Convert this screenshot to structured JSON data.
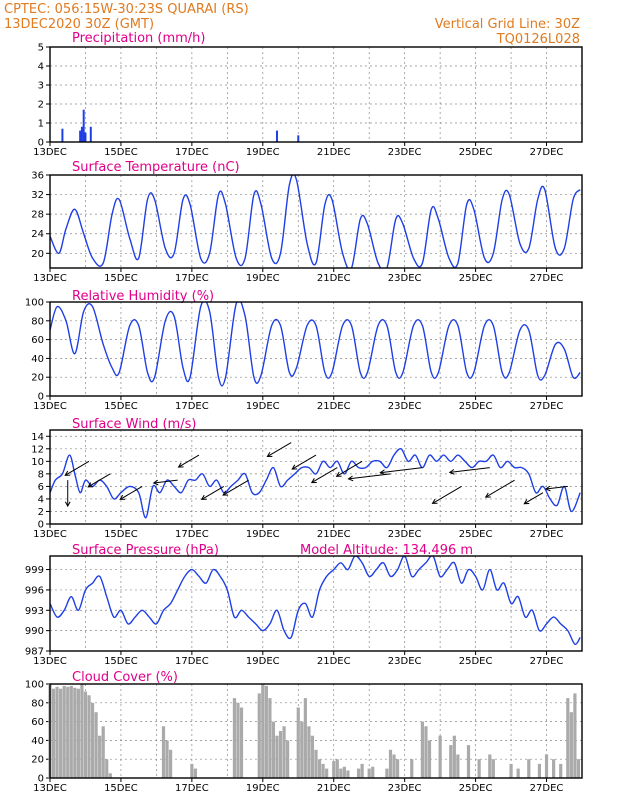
{
  "header": {
    "line1": "CPTEC:   056:15W-30:23S  QUARAI (RS)",
    "line2": "13DEC2020 30Z (GMT)",
    "right1": "Vertical Grid Line: 30Z",
    "right2": "TQ0126L028"
  },
  "colors": {
    "header": "#e07b1f",
    "title": "#e0008a",
    "line": "#1f3fe6",
    "bar_precip": "#1f3fe6",
    "bar_cloud": "#aaaaaa"
  },
  "x_labels": [
    "13DEC",
    "15DEC",
    "17DEC",
    "19DEC",
    "21DEC",
    "23DEC",
    "25DEC",
    "27DEC"
  ],
  "chart_data": [
    {
      "type": "bar",
      "title": "Precipitation  (mm/h)",
      "ylim": [
        0,
        5
      ],
      "yticks": [
        0,
        1,
        2,
        3,
        4,
        5
      ],
      "x_day_range": [
        13,
        28
      ],
      "x": [
        13.35,
        13.85,
        13.9,
        13.95,
        14.0,
        14.15,
        19.4,
        20.0
      ],
      "values": [
        0.7,
        0.6,
        0.8,
        1.7,
        0.5,
        0.8,
        0.6,
        0.35
      ]
    },
    {
      "type": "line",
      "title": "Surface Temperature (nC)",
      "ylim": [
        17,
        36
      ],
      "yticks": [
        20,
        24,
        28,
        32,
        36
      ],
      "x_day_range": [
        13,
        28
      ],
      "x": [
        13.0,
        13.25,
        13.45,
        13.7,
        13.95,
        14.2,
        14.5,
        14.75,
        14.95,
        15.25,
        15.5,
        15.75,
        15.95,
        16.25,
        16.5,
        16.75,
        16.95,
        17.25,
        17.5,
        17.75,
        17.95,
        18.25,
        18.5,
        18.75,
        18.95,
        19.25,
        19.5,
        19.75,
        19.95,
        20.25,
        20.5,
        20.75,
        20.95,
        21.25,
        21.5,
        21.75,
        21.95,
        22.25,
        22.5,
        22.75,
        22.95,
        23.25,
        23.5,
        23.75,
        23.95,
        24.25,
        24.5,
        24.75,
        24.95,
        25.25,
        25.5,
        25.75,
        25.95,
        26.25,
        26.5,
        26.75,
        26.95,
        27.25,
        27.5,
        27.75,
        27.95
      ],
      "values": [
        23.5,
        20,
        25,
        29,
        24,
        19,
        18,
        28,
        31,
        23,
        19,
        31,
        31,
        21,
        20,
        31,
        30,
        19,
        20,
        32,
        30,
        19,
        19,
        32,
        30,
        19,
        20,
        34,
        35,
        22,
        18,
        30,
        31,
        20,
        17,
        27,
        26,
        18,
        17,
        27,
        26,
        19,
        18,
        29,
        27,
        19,
        18,
        30,
        29,
        19,
        20,
        31,
        32,
        22,
        21,
        31,
        33,
        21,
        21,
        31,
        33
      ]
    },
    {
      "type": "line",
      "title": "Relative Humidity  (%)",
      "ylim": [
        0,
        100
      ],
      "yticks": [
        0,
        20,
        40,
        60,
        80,
        100
      ],
      "x_day_range": [
        13,
        28
      ],
      "x": [
        13.0,
        13.2,
        13.45,
        13.7,
        13.95,
        14.2,
        14.5,
        14.75,
        14.95,
        15.25,
        15.5,
        15.75,
        15.95,
        16.25,
        16.5,
        16.75,
        16.95,
        17.25,
        17.5,
        17.75,
        17.95,
        18.25,
        18.5,
        18.75,
        18.95,
        19.25,
        19.5,
        19.75,
        19.95,
        20.25,
        20.5,
        20.75,
        20.95,
        21.25,
        21.5,
        21.75,
        21.95,
        22.25,
        22.5,
        22.75,
        22.95,
        23.25,
        23.5,
        23.75,
        23.95,
        24.25,
        24.5,
        24.75,
        24.95,
        25.25,
        25.5,
        25.75,
        25.95,
        26.25,
        26.5,
        26.75,
        26.95,
        27.25,
        27.5,
        27.75,
        27.95
      ],
      "values": [
        70,
        95,
        80,
        45,
        90,
        95,
        55,
        30,
        25,
        75,
        75,
        25,
        20,
        80,
        85,
        30,
        20,
        95,
        90,
        20,
        20,
        98,
        85,
        20,
        22,
        75,
        75,
        25,
        30,
        75,
        75,
        25,
        25,
        75,
        75,
        25,
        25,
        75,
        75,
        25,
        25,
        75,
        75,
        25,
        25,
        75,
        75,
        25,
        25,
        75,
        75,
        25,
        25,
        70,
        70,
        22,
        22,
        55,
        50,
        20,
        25
      ]
    },
    {
      "type": "line",
      "title": "Surface Wind  (m/s)",
      "ylim": [
        0,
        15
      ],
      "yticks": [
        0,
        2,
        4,
        6,
        8,
        10,
        12,
        14
      ],
      "x_day_range": [
        13,
        28
      ],
      "x": [
        13.0,
        13.15,
        13.35,
        13.55,
        13.7,
        13.85,
        14.0,
        14.2,
        14.4,
        14.6,
        14.8,
        15.0,
        15.25,
        15.5,
        15.7,
        15.9,
        16.1,
        16.3,
        16.5,
        16.7,
        16.9,
        17.1,
        17.3,
        17.5,
        17.7,
        17.9,
        18.1,
        18.3,
        18.5,
        18.7,
        18.9,
        19.1,
        19.3,
        19.5,
        19.7,
        19.9,
        20.1,
        20.3,
        20.5,
        20.7,
        20.9,
        21.1,
        21.3,
        21.5,
        21.7,
        21.9,
        22.1,
        22.3,
        22.5,
        22.7,
        22.9,
        23.1,
        23.3,
        23.5,
        23.7,
        23.9,
        24.1,
        24.3,
        24.5,
        24.7,
        24.9,
        25.1,
        25.3,
        25.5,
        25.7,
        25.9,
        26.1,
        26.3,
        26.5,
        26.7,
        26.9,
        27.1,
        27.3,
        27.5,
        27.7,
        27.95
      ],
      "values": [
        5,
        7,
        8,
        11,
        8,
        5,
        7,
        6,
        7,
        6,
        4,
        5,
        6,
        5,
        1,
        6,
        5,
        7,
        6,
        5,
        7,
        7,
        8,
        6,
        7,
        5,
        6,
        7,
        8,
        5,
        5,
        7,
        9,
        6,
        7,
        8,
        9,
        9,
        8,
        10,
        9,
        10,
        8,
        10,
        9,
        9,
        10,
        10,
        9,
        11,
        12,
        10,
        11,
        9,
        11,
        10,
        11,
        10,
        11,
        10,
        9,
        10,
        10,
        11,
        9,
        10,
        9,
        9,
        8,
        5,
        6,
        4,
        3,
        6,
        2,
        5
      ],
      "arrows": [
        {
          "x": 13.5,
          "y": 7,
          "dir": "from-n",
          "len": 26
        },
        {
          "x": 14.1,
          "y": 10,
          "dir": "from-ne",
          "len": 28
        },
        {
          "x": 14.7,
          "y": 8,
          "dir": "from-ne",
          "len": 26
        },
        {
          "x": 15.6,
          "y": 6,
          "dir": "from-ne",
          "len": 26
        },
        {
          "x": 16.6,
          "y": 7,
          "dir": "from-e",
          "len": 24
        },
        {
          "x": 17.2,
          "y": 11,
          "dir": "from-ne",
          "len": 24
        },
        {
          "x": 17.9,
          "y": 6,
          "dir": "from-ne",
          "len": 26
        },
        {
          "x": 18.6,
          "y": 7,
          "dir": "from-ne",
          "len": 30
        },
        {
          "x": 19.8,
          "y": 13,
          "dir": "from-ne",
          "len": 28
        },
        {
          "x": 20.5,
          "y": 11,
          "dir": "from-ne",
          "len": 28
        },
        {
          "x": 21.1,
          "y": 9,
          "dir": "from-ne",
          "len": 30
        },
        {
          "x": 21.8,
          "y": 10,
          "dir": "from-ne",
          "len": 30
        },
        {
          "x": 22.6,
          "y": 8,
          "dir": "from-e",
          "len": 42
        },
        {
          "x": 23.5,
          "y": 9,
          "dir": "from-e",
          "len": 42
        },
        {
          "x": 24.6,
          "y": 6,
          "dir": "from-ne",
          "len": 34
        },
        {
          "x": 25.4,
          "y": 9,
          "dir": "from-e",
          "len": 40
        },
        {
          "x": 26.1,
          "y": 7,
          "dir": "from-ne",
          "len": 34
        },
        {
          "x": 26.9,
          "y": 5,
          "dir": "from-ne",
          "len": 22
        },
        {
          "x": 27.6,
          "y": 6,
          "dir": "from-e",
          "len": 22
        }
      ]
    },
    {
      "type": "line",
      "title": "Surface Pressure  (hPa)",
      "annotation": "Model Altitude:  134.496  m",
      "ylim": [
        987,
        1001
      ],
      "yticks": [
        987,
        990,
        993,
        996,
        999
      ],
      "x_day_range": [
        13,
        28
      ],
      "x": [
        13.0,
        13.2,
        13.4,
        13.6,
        13.8,
        14.0,
        14.2,
        14.4,
        14.6,
        14.8,
        15.0,
        15.2,
        15.4,
        15.6,
        15.8,
        16.0,
        16.2,
        16.4,
        16.6,
        16.8,
        17.0,
        17.2,
        17.4,
        17.6,
        17.8,
        18.0,
        18.2,
        18.4,
        18.6,
        18.8,
        19.0,
        19.2,
        19.4,
        19.6,
        19.8,
        20.0,
        20.2,
        20.4,
        20.6,
        20.8,
        21.0,
        21.2,
        21.4,
        21.6,
        21.8,
        22.0,
        22.2,
        22.4,
        22.6,
        22.8,
        23.0,
        23.2,
        23.4,
        23.6,
        23.8,
        24.0,
        24.2,
        24.4,
        24.6,
        24.8,
        25.0,
        25.2,
        25.4,
        25.6,
        25.8,
        26.0,
        26.2,
        26.4,
        26.6,
        26.8,
        27.0,
        27.2,
        27.4,
        27.6,
        27.8,
        27.95
      ],
      "values": [
        994,
        992,
        993,
        995,
        993,
        996,
        997,
        998,
        995,
        992,
        993,
        991,
        992,
        993,
        992,
        991,
        993,
        994,
        996,
        998,
        999,
        998,
        997,
        999,
        998,
        996,
        992,
        993,
        992,
        991,
        990,
        991,
        993,
        990,
        989,
        993,
        994,
        992,
        996,
        998,
        999,
        1000,
        999,
        1001,
        1000,
        998,
        999,
        1000,
        998,
        999,
        1001,
        998,
        999,
        1000,
        1001,
        998,
        999,
        1000,
        997,
        999,
        998,
        996,
        999,
        996,
        997,
        994,
        995,
        992,
        993,
        990,
        991,
        992,
        991,
        990,
        988,
        989
      ]
    },
    {
      "type": "bar",
      "title": "Cloud Cover  (%)",
      "ylim": [
        0,
        100
      ],
      "yticks": [
        0,
        20,
        40,
        60,
        80,
        100
      ],
      "x_day_range": [
        13,
        28
      ],
      "x": [
        13.0,
        13.1,
        13.2,
        13.3,
        13.4,
        13.5,
        13.6,
        13.7,
        13.8,
        13.9,
        14.0,
        14.1,
        14.2,
        14.3,
        14.4,
        14.5,
        14.6,
        14.7,
        15.3,
        15.4,
        16.2,
        16.3,
        16.4,
        17.0,
        17.1,
        18.2,
        18.3,
        18.4,
        18.9,
        19.0,
        19.1,
        19.2,
        19.3,
        19.4,
        19.5,
        19.6,
        19.7,
        20.0,
        20.1,
        20.2,
        20.3,
        20.4,
        20.5,
        20.6,
        20.7,
        20.8,
        21.0,
        21.1,
        21.2,
        21.3,
        21.4,
        21.7,
        21.8,
        22.0,
        22.1,
        22.5,
        22.6,
        22.7,
        22.8,
        23.2,
        23.5,
        23.6,
        23.7,
        24.0,
        24.3,
        24.4,
        24.5,
        24.8,
        25.1,
        25.4,
        25.5,
        26.0,
        26.2,
        26.5,
        26.8,
        27.0,
        27.2,
        27.4,
        27.6,
        27.7,
        27.8,
        27.9
      ],
      "values": [
        100,
        95,
        97,
        95,
        98,
        97,
        98,
        96,
        95,
        100,
        92,
        88,
        80,
        70,
        45,
        55,
        20,
        5,
        0,
        0,
        55,
        40,
        30,
        15,
        10,
        85,
        80,
        75,
        90,
        100,
        98,
        85,
        60,
        45,
        50,
        55,
        40,
        75,
        60,
        85,
        55,
        45,
        30,
        20,
        15,
        10,
        18,
        20,
        10,
        12,
        8,
        10,
        15,
        10,
        12,
        10,
        30,
        25,
        20,
        20,
        60,
        55,
        40,
        45,
        35,
        45,
        25,
        35,
        20,
        25,
        20,
        15,
        10,
        20,
        15,
        25,
        20,
        15,
        85,
        70,
        90,
        20
      ]
    }
  ]
}
